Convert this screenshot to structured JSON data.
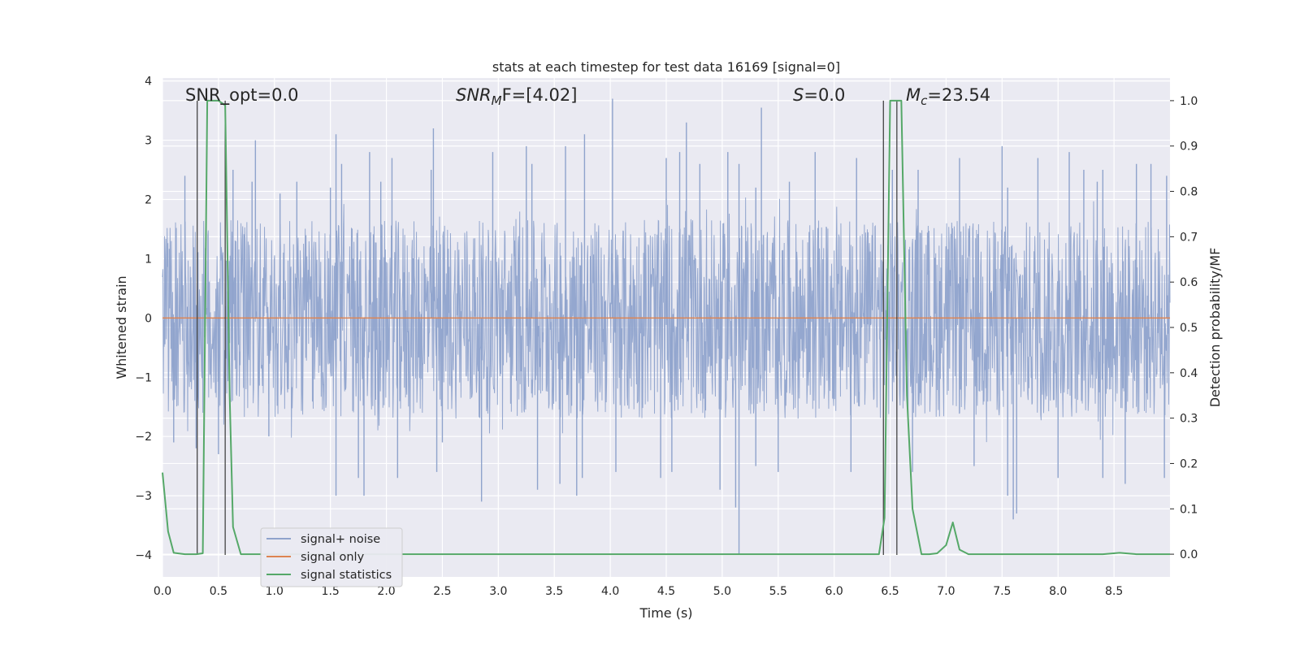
{
  "chart_data": {
    "type": "line",
    "title": "stats at each timestep for test data 16169 [signal=0]",
    "xlabel": "Time (s)",
    "ylabel_left": "Whitened strain",
    "ylabel_right": "Detection probability/MF",
    "xlim": [
      0.0,
      9.0
    ],
    "ylim_left": [
      -4.37,
      4.05
    ],
    "ylim_right": [
      -0.05,
      1.05
    ],
    "x_ticks": [
      0.0,
      0.5,
      1.0,
      1.5,
      2.0,
      2.5,
      3.0,
      3.5,
      4.0,
      4.5,
      5.0,
      5.5,
      6.0,
      6.5,
      7.0,
      7.5,
      8.0,
      8.5
    ],
    "x_tick_labels": [
      "0.0",
      "0.5",
      "1.0",
      "1.5",
      "2.0",
      "2.5",
      "3.0",
      "3.5",
      "4.0",
      "4.5",
      "5.0",
      "5.5",
      "6.0",
      "6.5",
      "7.0",
      "7.5",
      "8.0",
      "8.5"
    ],
    "y_ticks_left": [
      -4,
      -3,
      -2,
      -1,
      0,
      1,
      2,
      3,
      4
    ],
    "y_tick_labels_left": [
      "−4",
      "−3",
      "−2",
      "−1",
      "0",
      "1",
      "2",
      "3",
      "4"
    ],
    "y_ticks_right": [
      0.0,
      0.1,
      0.2,
      0.3,
      0.4,
      0.5,
      0.6,
      0.7,
      0.8,
      0.9,
      1.0
    ],
    "y_tick_labels_right": [
      "0.0",
      "0.1",
      "0.2",
      "0.3",
      "0.4",
      "0.5",
      "0.6",
      "0.7",
      "0.8",
      "0.9",
      "1.0"
    ],
    "grid": true,
    "legend_position": "lower-left",
    "annotations": {
      "snr_opt": "SNR_opt=0.0",
      "snr_mf_main": "SNR",
      "snr_mf_sub": "M",
      "snr_mf_tail": "F=[4.02]",
      "s_main": "S",
      "s_tail": "=0.0",
      "mc_main": "M",
      "mc_sub": "c",
      "mc_tail": "=23.54"
    },
    "series": [
      {
        "name": "signal+ noise",
        "axis": "left",
        "color": "#8fa3cc",
        "style": "dense-noise",
        "band": [
          -1.7,
          1.65
        ],
        "peak_extremes": [
          [
            0.2,
            2.4
          ],
          [
            0.63,
            2.5
          ],
          [
            0.8,
            2.3
          ],
          [
            0.83,
            3.0
          ],
          [
            1.05,
            2.1
          ],
          [
            1.2,
            2.3
          ],
          [
            1.5,
            2.2
          ],
          [
            1.55,
            3.1
          ],
          [
            1.6,
            2.6
          ],
          [
            1.85,
            2.8
          ],
          [
            1.95,
            2.3
          ],
          [
            2.05,
            2.7
          ],
          [
            2.4,
            2.5
          ],
          [
            2.42,
            3.2
          ],
          [
            2.95,
            2.8
          ],
          [
            3.25,
            2.9
          ],
          [
            3.3,
            2.6
          ],
          [
            3.6,
            2.9
          ],
          [
            3.77,
            3.1
          ],
          [
            4.02,
            3.7
          ],
          [
            4.5,
            2.7
          ],
          [
            4.62,
            2.8
          ],
          [
            4.68,
            3.3
          ],
          [
            4.8,
            2.6
          ],
          [
            5.05,
            2.8
          ],
          [
            5.15,
            2.6
          ],
          [
            5.3,
            2.2
          ],
          [
            5.35,
            3.55
          ],
          [
            5.6,
            2.3
          ],
          [
            5.83,
            2.8
          ],
          [
            6.2,
            2.7
          ],
          [
            6.52,
            2.5
          ],
          [
            6.75,
            2.5
          ],
          [
            7.12,
            2.7
          ],
          [
            7.5,
            2.9
          ],
          [
            7.55,
            2.2
          ],
          [
            7.82,
            2.7
          ],
          [
            8.1,
            2.8
          ],
          [
            8.23,
            2.5
          ],
          [
            8.35,
            2.3
          ],
          [
            8.4,
            2.5
          ],
          [
            8.7,
            2.6
          ],
          [
            8.83,
            2.6
          ],
          [
            8.97,
            2.4
          ],
          [
            0.1,
            -2.1
          ],
          [
            0.3,
            -2.2
          ],
          [
            0.5,
            -2.3
          ],
          [
            0.95,
            -2.0
          ],
          [
            1.55,
            -3.0
          ],
          [
            1.75,
            -2.7
          ],
          [
            1.8,
            -3.0
          ],
          [
            2.1,
            -2.7
          ],
          [
            2.45,
            -2.6
          ],
          [
            2.5,
            -2.1
          ],
          [
            2.85,
            -3.1
          ],
          [
            3.35,
            -2.9
          ],
          [
            3.55,
            -2.8
          ],
          [
            3.7,
            -3.0
          ],
          [
            3.75,
            -2.7
          ],
          [
            4.05,
            -2.6
          ],
          [
            4.45,
            -2.7
          ],
          [
            4.55,
            -2.6
          ],
          [
            4.98,
            -2.9
          ],
          [
            5.12,
            -3.2
          ],
          [
            5.15,
            -4.0
          ],
          [
            5.3,
            -2.5
          ],
          [
            5.5,
            -2.6
          ],
          [
            6.15,
            -2.6
          ],
          [
            6.7,
            -2.6
          ],
          [
            7.25,
            -2.5
          ],
          [
            7.55,
            -3.0
          ],
          [
            7.6,
            -3.4
          ],
          [
            7.63,
            -3.3
          ],
          [
            8.0,
            -2.7
          ],
          [
            8.4,
            -2.7
          ],
          [
            8.6,
            -2.8
          ],
          [
            8.95,
            -2.7
          ]
        ]
      },
      {
        "name": "signal only",
        "axis": "left",
        "color": "#dd8452",
        "x": [
          0.0,
          9.0
        ],
        "y": [
          0.0,
          0.0
        ]
      },
      {
        "name": "signal statistics",
        "axis": "right",
        "color": "#55a868",
        "x": [
          0.0,
          0.05,
          0.1,
          0.2,
          0.3,
          0.36,
          0.4,
          0.45,
          0.5,
          0.56,
          0.6,
          0.63,
          0.7,
          1.0,
          2.0,
          3.0,
          4.0,
          5.0,
          5.15,
          6.0,
          6.3,
          6.4,
          6.45,
          6.5,
          6.55,
          6.6,
          6.65,
          6.7,
          6.78,
          6.85,
          6.92,
          7.0,
          7.06,
          7.12,
          7.2,
          7.5,
          8.0,
          8.4,
          8.55,
          8.7,
          9.0
        ],
        "y": [
          0.18,
          0.05,
          0.003,
          0.0,
          0.0,
          0.002,
          1.0,
          1.0,
          1.0,
          0.99,
          0.35,
          0.06,
          0.0,
          0.0,
          0.0,
          0.0,
          0.0,
          0.0,
          0.0,
          0.0,
          0.0,
          0.0,
          0.08,
          1.0,
          1.0,
          1.0,
          0.35,
          0.1,
          0.0,
          0.0,
          0.002,
          0.02,
          0.07,
          0.01,
          0.0,
          0.0,
          0.0,
          0.0,
          0.003,
          0.0,
          0.0
        ]
      }
    ],
    "marker_lines": [
      {
        "x": 0.31,
        "y_top": 1.0,
        "y_bottom": -4.0,
        "tick": false
      },
      {
        "x": 0.56,
        "y_top": 1.0,
        "y_bottom": -4.0,
        "tick": true
      },
      {
        "x": 6.44,
        "y_top": 1.0,
        "y_bottom": -4.0,
        "tick": false
      },
      {
        "x": 6.56,
        "y_top": 1.0,
        "y_bottom": -4.0,
        "tick": false
      }
    ]
  }
}
